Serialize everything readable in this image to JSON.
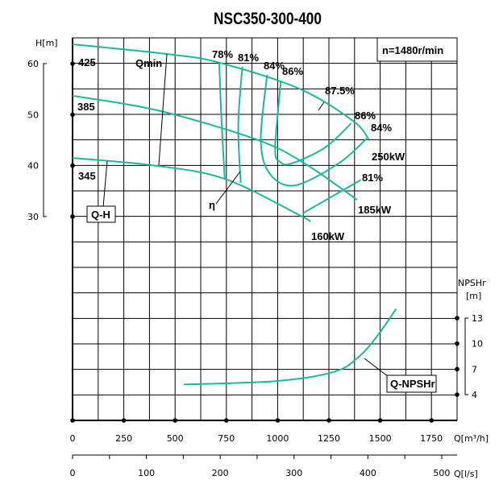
{
  "chart_data": {
    "type": "line",
    "title": "NSC350-300-400",
    "speed_label": "n=1480r/min",
    "x_axis": {
      "label": "Q[m³/h]",
      "range": [
        0,
        1875
      ],
      "ticks": [
        0,
        250,
        500,
        750,
        1000,
        1250,
        1500,
        1750
      ]
    },
    "x2_axis": {
      "label": "Q[l/s]",
      "range": [
        0,
        520.8
      ],
      "ticks": [
        0,
        100,
        200,
        300,
        400,
        500
      ]
    },
    "y_axis": {
      "label": "H[m]",
      "range": [
        30,
        60
      ],
      "ticks": [
        30,
        40,
        50,
        60
      ]
    },
    "y2_axis": {
      "label_top": "NPSHr",
      "label_unit": "[m]",
      "ticks": [
        4,
        7,
        10,
        13
      ]
    },
    "grid": true,
    "line_color": "#1db89c",
    "head_curves": [
      {
        "name": "425",
        "points": [
          [
            0,
            63.8
          ],
          [
            457,
            61.9
          ],
          [
            715,
            60.2
          ],
          [
            1105,
            55.1
          ],
          [
            1367,
            48.8
          ],
          [
            1445,
            45.1
          ]
        ]
      },
      {
        "name": "385",
        "points": [
          [
            0,
            53.7
          ],
          [
            418,
            50.8
          ],
          [
            898,
            45.1
          ],
          [
            1133,
            40.4
          ],
          [
            1387,
            33.3
          ]
        ]
      },
      {
        "name": "345",
        "points": [
          [
            0,
            41.5
          ],
          [
            402,
            40.0
          ],
          [
            742,
            37.4
          ],
          [
            1105,
            30.3
          ],
          [
            1160,
            29.0
          ]
        ]
      }
    ],
    "efficiency_curves": [
      {
        "name": "78%",
        "points": [
          [
            715,
            60.2
          ],
          [
            725,
            50
          ],
          [
            742,
            37.4
          ]
        ]
      },
      {
        "name": "81%",
        "points": [
          [
            828,
            59.4
          ],
          [
            808,
            48
          ],
          [
            820,
            36.6
          ]
        ]
      },
      {
        "name": "84%",
        "points": [
          [
            949,
            57.8
          ],
          [
            918,
            45.1
          ],
          [
            960,
            38.5
          ],
          [
            1082,
            36.1
          ],
          [
            1300,
            40.5
          ],
          [
            1434,
            45.3
          ]
        ]
      },
      {
        "name": "86%",
        "points": [
          [
            1016,
            56.7
          ],
          [
            988,
            43.5
          ],
          [
            1010,
            40.8
          ],
          [
            1066,
            40.4
          ],
          [
            1230,
            43.5
          ],
          [
            1359,
            48.3
          ]
        ]
      },
      {
        "name": "81%",
        "points": [
          [
            1406,
            37.2
          ],
          [
            1121,
            30.6
          ]
        ]
      }
    ],
    "npsh_curve": {
      "name": "Q-NPSHr",
      "points": [
        [
          543,
          5.2
        ],
        [
          996,
          5.6
        ],
        [
          1277,
          6.7
        ],
        [
          1398,
          8.5
        ],
        [
          1492,
          11.1
        ],
        [
          1578,
          14.1
        ]
      ]
    },
    "labels": {
      "impeller_425": "425",
      "impeller_385": "385",
      "impeller_345": "345",
      "qmin": "Qmin",
      "eta": "η",
      "qh": "Q-H",
      "qnpsh": "Q-NPSHr",
      "eff_78": "78%",
      "eff_81": "81%",
      "eff_84": "84%",
      "eff_86": "86%",
      "eff_875": "87.5%",
      "eff_86_r": "86%",
      "eff_84_r": "84%",
      "eff_81_r": "81%",
      "power_250": "250kW",
      "power_185": "185kW",
      "power_160": "160kW"
    }
  }
}
